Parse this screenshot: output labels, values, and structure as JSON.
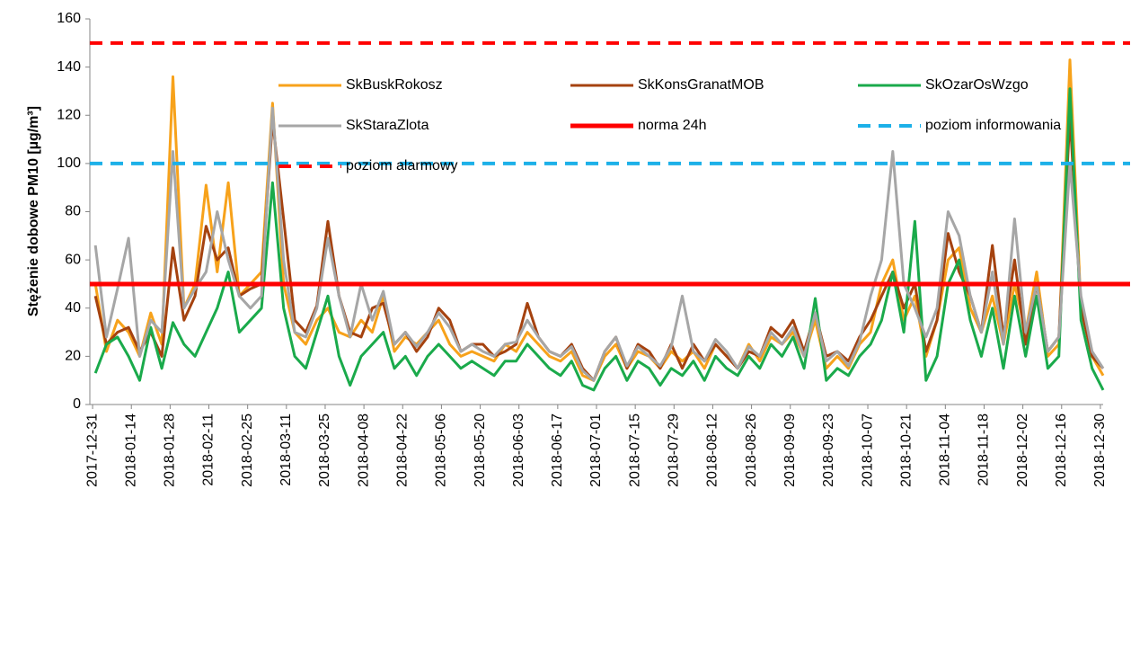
{
  "chart_data": {
    "type": "line",
    "y_label": "Stężenie dobowe PM10 [µg/m³]",
    "x": [
      "2018-01-01",
      "2018-01-05",
      "2018-01-09",
      "2018-01-13",
      "2018-01-17",
      "2018-01-21",
      "2018-01-25",
      "2018-01-29",
      "2018-02-02",
      "2018-02-06",
      "2018-02-10",
      "2018-02-14",
      "2018-02-18",
      "2018-02-22",
      "2018-02-26",
      "2018-03-02",
      "2018-03-06",
      "2018-03-10",
      "2018-03-14",
      "2018-03-18",
      "2018-03-22",
      "2018-03-26",
      "2018-03-30",
      "2018-04-03",
      "2018-04-07",
      "2018-04-11",
      "2018-04-15",
      "2018-04-19",
      "2018-04-23",
      "2018-04-27",
      "2018-05-01",
      "2018-05-05",
      "2018-05-09",
      "2018-05-13",
      "2018-05-17",
      "2018-05-21",
      "2018-05-25",
      "2018-05-29",
      "2018-06-02",
      "2018-06-06",
      "2018-06-10",
      "2018-06-14",
      "2018-06-18",
      "2018-06-22",
      "2018-06-26",
      "2018-06-30",
      "2018-07-04",
      "2018-07-08",
      "2018-07-12",
      "2018-07-16",
      "2018-07-20",
      "2018-07-24",
      "2018-07-28",
      "2018-08-01",
      "2018-08-05",
      "2018-08-09",
      "2018-08-13",
      "2018-08-17",
      "2018-08-21",
      "2018-08-25",
      "2018-08-29",
      "2018-09-02",
      "2018-09-06",
      "2018-09-10",
      "2018-09-14",
      "2018-09-18",
      "2018-09-22",
      "2018-09-26",
      "2018-09-30",
      "2018-10-04",
      "2018-10-08",
      "2018-10-12",
      "2018-10-16",
      "2018-10-20",
      "2018-10-24",
      "2018-10-28",
      "2018-11-01",
      "2018-11-05",
      "2018-11-09",
      "2018-11-13",
      "2018-11-17",
      "2018-11-21",
      "2018-11-25",
      "2018-11-29",
      "2018-12-03",
      "2018-12-07",
      "2018-12-11",
      "2018-12-15",
      "2018-12-19",
      "2018-12-23",
      "2018-12-27",
      "2018-12-31"
    ],
    "series": [
      {
        "name": "SkBuskRokosz",
        "color": "#f7a21b",
        "values": [
          50,
          22,
          35,
          30,
          20,
          38,
          25,
          136,
          40,
          50,
          91,
          55,
          92,
          45,
          50,
          55,
          125,
          50,
          30,
          25,
          35,
          40,
          30,
          28,
          35,
          30,
          45,
          22,
          28,
          25,
          30,
          35,
          25,
          20,
          22,
          20,
          18,
          25,
          22,
          30,
          25,
          20,
          18,
          22,
          12,
          10,
          20,
          25,
          15,
          22,
          20,
          15,
          22,
          18,
          22,
          15,
          25,
          20,
          15,
          25,
          18,
          28,
          25,
          30,
          20,
          35,
          15,
          20,
          15,
          25,
          30,
          50,
          60,
          35,
          45,
          20,
          35,
          60,
          65,
          40,
          30,
          45,
          25,
          50,
          30,
          55,
          20,
          25,
          143,
          40,
          20,
          12
        ]
      },
      {
        "name": "SkKonsGranatMOB",
        "color": "#a5420f",
        "values": [
          45,
          25,
          30,
          32,
          22,
          30,
          20,
          65,
          35,
          45,
          74,
          60,
          65,
          45,
          48,
          50,
          118,
          77,
          35,
          30,
          41,
          76,
          45,
          30,
          28,
          40,
          42,
          25,
          30,
          22,
          28,
          40,
          35,
          22,
          25,
          25,
          20,
          22,
          25,
          42,
          28,
          22,
          20,
          25,
          15,
          10,
          22,
          28,
          15,
          25,
          22,
          15,
          25,
          15,
          25,
          18,
          25,
          20,
          15,
          22,
          20,
          32,
          28,
          35,
          22,
          38,
          20,
          22,
          18,
          28,
          35,
          45,
          55,
          40,
          50,
          22,
          35,
          71,
          55,
          45,
          30,
          66,
          28,
          60,
          25,
          50,
          22,
          28,
          120,
          40,
          20,
          15
        ]
      },
      {
        "name": "SkOzarOsWzgo",
        "color": "#1aaa4b",
        "values": [
          13,
          25,
          28,
          20,
          10,
          32,
          15,
          34,
          25,
          20,
          30,
          40,
          55,
          30,
          35,
          40,
          92,
          40,
          20,
          15,
          30,
          45,
          20,
          8,
          20,
          25,
          30,
          15,
          20,
          12,
          20,
          25,
          20,
          15,
          18,
          15,
          12,
          18,
          18,
          25,
          20,
          15,
          12,
          18,
          8,
          6,
          15,
          20,
          10,
          18,
          15,
          8,
          15,
          12,
          18,
          10,
          20,
          15,
          12,
          20,
          15,
          25,
          20,
          28,
          15,
          44,
          10,
          15,
          12,
          20,
          25,
          35,
          55,
          30,
          76,
          10,
          20,
          50,
          60,
          35,
          20,
          40,
          15,
          45,
          20,
          45,
          15,
          20,
          131,
          35,
          15,
          6
        ]
      },
      {
        "name": "SkStaraZlota",
        "color": "#a6a6a6",
        "values": [
          66,
          28,
          48,
          69,
          20,
          35,
          30,
          105,
          40,
          48,
          55,
          80,
          60,
          45,
          40,
          45,
          123,
          60,
          30,
          28,
          40,
          69,
          45,
          28,
          50,
          35,
          47,
          25,
          30,
          24,
          30,
          38,
          32,
          22,
          25,
          22,
          20,
          25,
          26,
          35,
          28,
          22,
          20,
          24,
          14,
          10,
          22,
          28,
          16,
          24,
          20,
          16,
          24,
          45,
          22,
          18,
          27,
          22,
          15,
          24,
          20,
          30,
          25,
          32,
          20,
          38,
          18,
          22,
          16,
          26,
          45,
          60,
          105,
          50,
          40,
          28,
          40,
          80,
          70,
          45,
          30,
          55,
          25,
          77,
          30,
          50,
          22,
          28,
          100,
          45,
          22,
          15
        ]
      }
    ],
    "reference_lines": [
      {
        "name": "norma 24h",
        "color": "#ff0000",
        "value": 50,
        "dashed": false
      },
      {
        "name": "poziom informowania",
        "color": "#1cb0e8",
        "value": 100,
        "dashed": true
      },
      {
        "name": "poziom alarmowy",
        "color": "#ff0000",
        "value": 150,
        "dashed": true
      }
    ],
    "xlim": [
      "2017-12-30",
      "2018-12-31"
    ],
    "xticks": [
      "2017-12-31",
      "2018-01-14",
      "2018-01-28",
      "2018-02-11",
      "2018-02-25",
      "2018-03-11",
      "2018-03-25",
      "2018-04-08",
      "2018-04-22",
      "2018-05-06",
      "2018-05-20",
      "2018-06-03",
      "2018-06-17",
      "2018-07-01",
      "2018-07-15",
      "2018-07-29",
      "2018-08-12",
      "2018-08-26",
      "2018-09-09",
      "2018-09-23",
      "2018-10-07",
      "2018-10-21",
      "2018-11-04",
      "2018-11-18",
      "2018-12-02",
      "2018-12-16",
      "2018-12-30"
    ],
    "ylim": [
      0,
      160
    ],
    "yticks": [
      0,
      20,
      40,
      60,
      80,
      100,
      120,
      140,
      160
    ],
    "grid": false
  }
}
